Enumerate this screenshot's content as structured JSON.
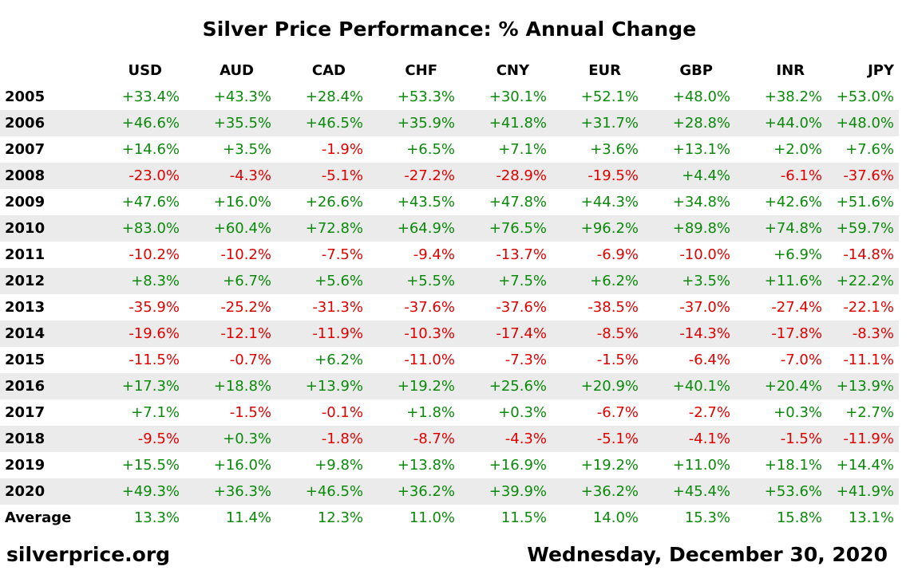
{
  "chart_data": {
    "type": "table",
    "title": "Silver Price Performance: % Annual Change",
    "columns": [
      "USD",
      "AUD",
      "CAD",
      "CHF",
      "CNY",
      "EUR",
      "GBP",
      "INR",
      "JPY"
    ],
    "rows": [
      {
        "label": "2005",
        "values": [
          "+33.4%",
          "+43.3%",
          "+28.4%",
          "+53.3%",
          "+30.1%",
          "+52.1%",
          "+48.0%",
          "+38.2%",
          "+53.0%"
        ]
      },
      {
        "label": "2006",
        "values": [
          "+46.6%",
          "+35.5%",
          "+46.5%",
          "+35.9%",
          "+41.8%",
          "+31.7%",
          "+28.8%",
          "+44.0%",
          "+48.0%"
        ]
      },
      {
        "label": "2007",
        "values": [
          "+14.6%",
          "+3.5%",
          "-1.9%",
          "+6.5%",
          "+7.1%",
          "+3.6%",
          "+13.1%",
          "+2.0%",
          "+7.6%"
        ]
      },
      {
        "label": "2008",
        "values": [
          "-23.0%",
          "-4.3%",
          "-5.1%",
          "-27.2%",
          "-28.9%",
          "-19.5%",
          "+4.4%",
          "-6.1%",
          "-37.6%"
        ]
      },
      {
        "label": "2009",
        "values": [
          "+47.6%",
          "+16.0%",
          "+26.6%",
          "+43.5%",
          "+47.8%",
          "+44.3%",
          "+34.8%",
          "+42.6%",
          "+51.6%"
        ]
      },
      {
        "label": "2010",
        "values": [
          "+83.0%",
          "+60.4%",
          "+72.8%",
          "+64.9%",
          "+76.5%",
          "+96.2%",
          "+89.8%",
          "+74.8%",
          "+59.7%"
        ]
      },
      {
        "label": "2011",
        "values": [
          "-10.2%",
          "-10.2%",
          "-7.5%",
          "-9.4%",
          "-13.7%",
          "-6.9%",
          "-10.0%",
          "+6.9%",
          "-14.8%"
        ]
      },
      {
        "label": "2012",
        "values": [
          "+8.3%",
          "+6.7%",
          "+5.6%",
          "+5.5%",
          "+7.5%",
          "+6.2%",
          "+3.5%",
          "+11.6%",
          "+22.2%"
        ]
      },
      {
        "label": "2013",
        "values": [
          "-35.9%",
          "-25.2%",
          "-31.3%",
          "-37.6%",
          "-37.6%",
          "-38.5%",
          "-37.0%",
          "-27.4%",
          "-22.1%"
        ]
      },
      {
        "label": "2014",
        "values": [
          "-19.6%",
          "-12.1%",
          "-11.9%",
          "-10.3%",
          "-17.4%",
          "-8.5%",
          "-14.3%",
          "-17.8%",
          "-8.3%"
        ]
      },
      {
        "label": "2015",
        "values": [
          "-11.5%",
          "-0.7%",
          "+6.2%",
          "-11.0%",
          "-7.3%",
          "-1.5%",
          "-6.4%",
          "-7.0%",
          "-11.1%"
        ]
      },
      {
        "label": "2016",
        "values": [
          "+17.3%",
          "+18.8%",
          "+13.9%",
          "+19.2%",
          "+25.6%",
          "+20.9%",
          "+40.1%",
          "+20.4%",
          "+13.9%"
        ]
      },
      {
        "label": "2017",
        "values": [
          "+7.1%",
          "-1.5%",
          "-0.1%",
          "+1.8%",
          "+0.3%",
          "-6.7%",
          "-2.7%",
          "+0.3%",
          "+2.7%"
        ]
      },
      {
        "label": "2018",
        "values": [
          "-9.5%",
          "+0.3%",
          "-1.8%",
          "-8.7%",
          "-4.3%",
          "-5.1%",
          "-4.1%",
          "-1.5%",
          "-11.9%"
        ]
      },
      {
        "label": "2019",
        "values": [
          "+15.5%",
          "+16.0%",
          "+9.8%",
          "+13.8%",
          "+16.9%",
          "+19.2%",
          "+11.0%",
          "+18.1%",
          "+14.4%"
        ]
      },
      {
        "label": "2020",
        "values": [
          "+49.3%",
          "+36.3%",
          "+46.5%",
          "+36.2%",
          "+39.9%",
          "+36.2%",
          "+45.4%",
          "+53.6%",
          "+41.9%"
        ]
      }
    ],
    "average": {
      "label": "Average",
      "values": [
        "13.3%",
        "11.4%",
        "12.3%",
        "11.0%",
        "11.5%",
        "14.0%",
        "15.3%",
        "15.8%",
        "13.1%"
      ]
    },
    "colors": {
      "positive": "#0a8a0a",
      "negative": "#e00000",
      "row_stripe": "#ebebeb"
    }
  },
  "footer": {
    "source": "silverprice.org",
    "date": "Wednesday, December 30, 2020"
  }
}
